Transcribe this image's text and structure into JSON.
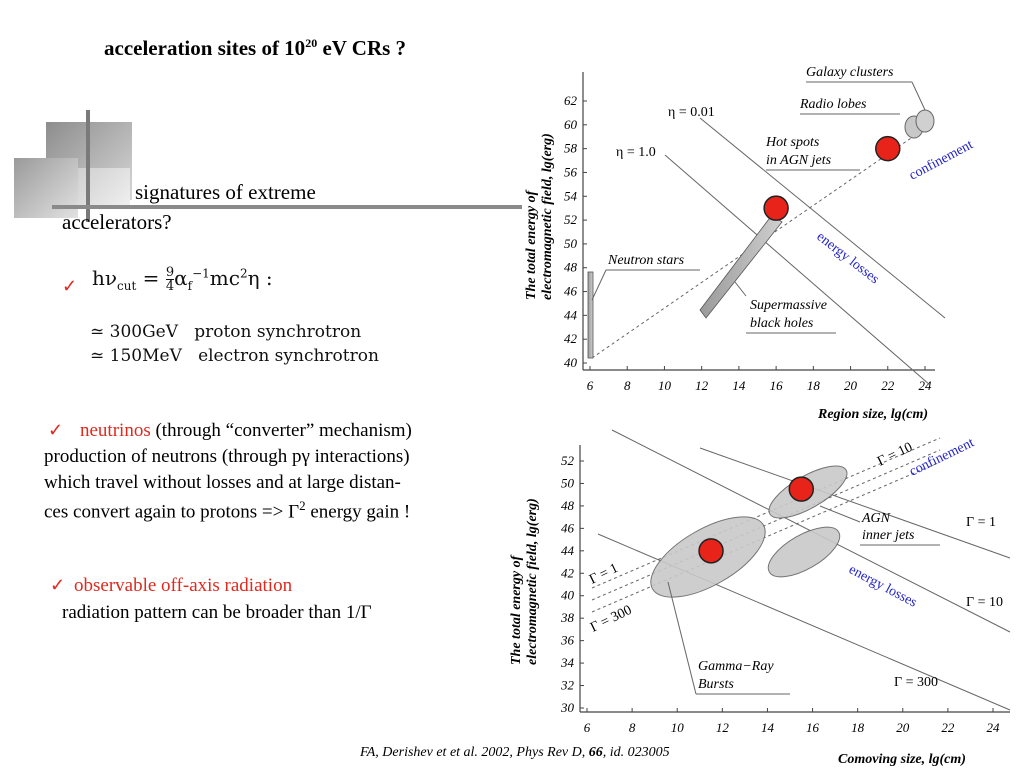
{
  "slide": {
    "title_prefix": "acceleration sites of 10",
    "title_sup": "20",
    "title_suffix": " eV  CRs ?",
    "subtitle_line1": "signatures of extreme",
    "subtitle_line2": "accelerators?",
    "formula": {
      "main_prefix": "hν",
      "main_sub": "cut",
      "main_eq": " = ",
      "frac_num": "9",
      "frac_den": "4",
      "alpha": "α",
      "alpha_sub": "f",
      "alpha_sup": "−1",
      "mc": "mc",
      "mc_sup": "2",
      "eta": "η :",
      "line1_val": "≃ 300GeV",
      "line1_desc": "proton synchrotron",
      "line2_val": "≃ 150MeV",
      "line2_desc": "electron synchrotron",
      "red_colon": ":"
    },
    "bullet_check": "✓",
    "neutrinos": {
      "highlight": "neutrinos",
      "line1_rest": " (through “converter” mechanism)",
      "line2": "production of neutrons (through pγ interactions)",
      "line3": "which travel  without losses and at large distan-",
      "line4_prefix": "ces convert again to protons => Γ",
      "line4_sup": "2",
      "line4_suffix": " energy gain !"
    },
    "offaxis": {
      "highlight": "observable off-axis radiation",
      "line2": "radiation pattern can be broader than 1/Γ"
    },
    "citation": {
      "prefix": "FA, Derishev et  et al. 2002, Phys Rev D, ",
      "volume": "66",
      "suffix": ",  id. 023005"
    }
  },
  "colors": {
    "accent_red": "#e0281e",
    "annotation_blue": "#2323c8",
    "marker_red": "#e8231a"
  },
  "chart_data": [
    {
      "type": "scatter",
      "ylabel": "The total energy of electromagnetic field, lg(erg)",
      "xlabel": "Region size, lg(cm)",
      "xlim": [
        6,
        24
      ],
      "ylim": [
        40,
        62
      ],
      "xticks": [
        "6",
        "8",
        "10",
        "12",
        "14",
        "16",
        "18",
        "20",
        "22",
        "24"
      ],
      "yticks": [
        "40",
        "42",
        "44",
        "46",
        "48",
        "50",
        "52",
        "54",
        "56",
        "58",
        "60",
        "62"
      ],
      "line_labels": [
        "η = 0.01",
        "η = 1.0"
      ],
      "source_labels": [
        "Galaxy clusters",
        "Radio lobes",
        "Hot spots",
        "in AGN jets",
        "Neutron stars",
        "Supermassive",
        "black holes"
      ],
      "annotations": [
        "confinement",
        "energy losses"
      ],
      "markers": [
        {
          "x": 16,
          "y": 53
        },
        {
          "x": 22,
          "y": 58
        }
      ]
    },
    {
      "type": "scatter",
      "ylabel": "The total energy of electromagnetic field, lg(erg)",
      "xlabel": "Comoving size, lg(cm)",
      "xlim": [
        6,
        24
      ],
      "ylim": [
        30,
        52
      ],
      "xticks": [
        "6",
        "8",
        "10",
        "12",
        "14",
        "16",
        "18",
        "20",
        "22",
        "24"
      ],
      "yticks": [
        "30",
        "32",
        "34",
        "36",
        "38",
        "40",
        "42",
        "44",
        "46",
        "48",
        "50",
        "52"
      ],
      "line_labels": [
        "Γ = 10",
        "Γ = 1",
        "Γ = 1",
        "Γ = 300",
        "Γ = 10",
        "Γ = 300"
      ],
      "source_labels": [
        "AGN",
        "inner jets",
        "Gamma−Ray",
        "Bursts"
      ],
      "annotations": [
        "confinement",
        "energy losses"
      ],
      "markers": [
        {
          "x": 11.5,
          "y": 44
        },
        {
          "x": 15.5,
          "y": 49.5
        }
      ]
    }
  ]
}
